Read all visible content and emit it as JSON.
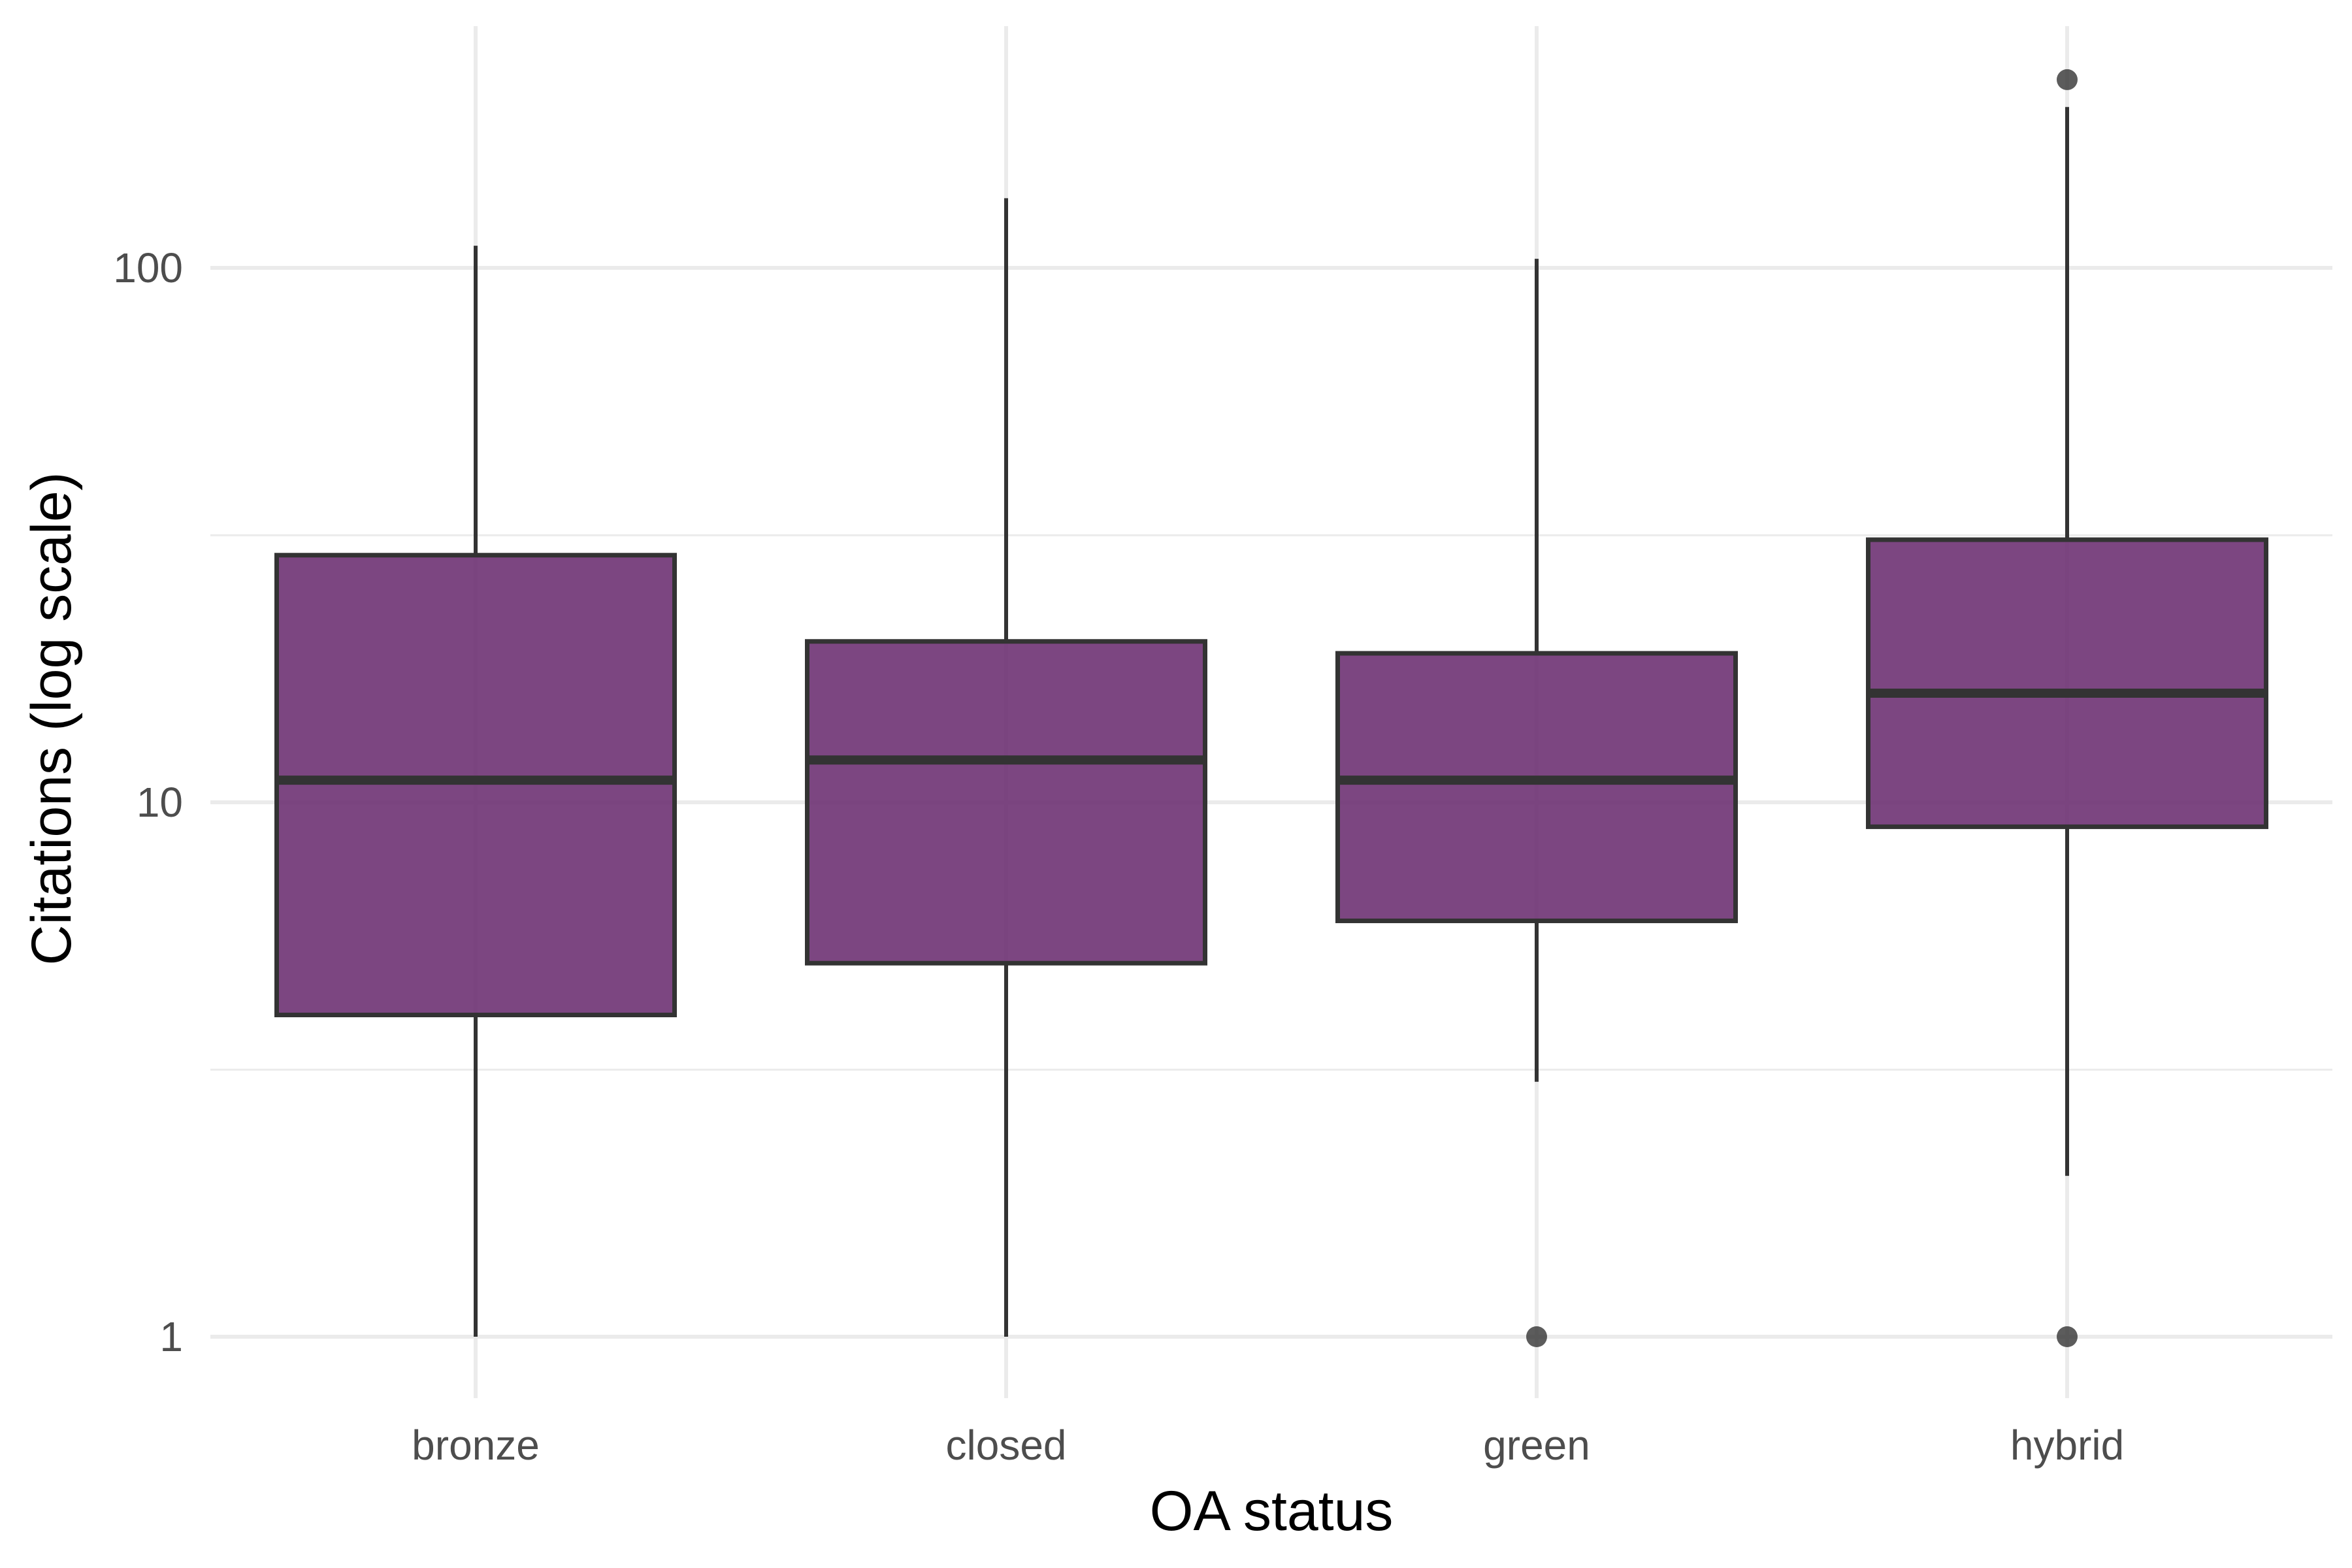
{
  "chart_data": {
    "type": "box",
    "title": "",
    "xlabel": "OA status",
    "ylabel": "Citations (log scale)",
    "y_scale": "log10",
    "ylim": [
      0.78,
      270
    ],
    "y_ticks": [
      1,
      10,
      100
    ],
    "y_tick_labels": [
      "1",
      "10",
      "100"
    ],
    "y_minor_ticks": [
      3.16,
      31.6
    ],
    "grid": true,
    "legend": "none",
    "colors": {
      "box_fill": "#6a2c70",
      "box_stroke": "#333333",
      "grid": "#ebebeb"
    },
    "categories": [
      "bronze",
      "closed",
      "green",
      "hybrid"
    ],
    "boxes": [
      {
        "category": "bronze",
        "whisker_low": 1,
        "q1": 4,
        "median": 11,
        "q3": 29,
        "whisker_high": 110,
        "outliers": []
      },
      {
        "category": "closed",
        "whisker_low": 1,
        "q1": 5,
        "median": 12,
        "q3": 20,
        "whisker_high": 135,
        "outliers": []
      },
      {
        "category": "green",
        "whisker_low": 3,
        "q1": 6,
        "median": 11,
        "q3": 19,
        "whisker_high": 104,
        "outliers": [
          1
        ]
      },
      {
        "category": "hybrid",
        "whisker_low": 2,
        "q1": 9,
        "median": 16,
        "q3": 31,
        "whisker_high": 200,
        "outliers": [
          1,
          225
        ]
      }
    ]
  }
}
